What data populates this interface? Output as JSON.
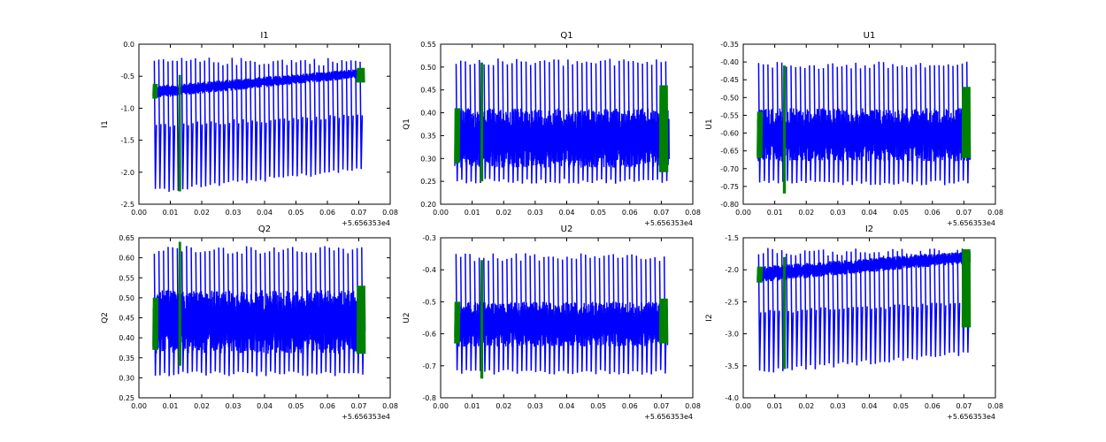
{
  "offset_label": "+5.656353e4",
  "colors": {
    "primary": "#0000ff",
    "secondary": "#008000"
  },
  "chart_data": [
    {
      "type": "line",
      "title": "I1",
      "xlabel": "",
      "ylabel": "I1",
      "xlim": [
        0.0,
        0.08
      ],
      "ylim": [
        -2.5,
        0.0
      ],
      "xticks": [
        "0.00",
        "0.01",
        "0.02",
        "0.03",
        "0.04",
        "0.05",
        "0.06",
        "0.07",
        "0.08"
      ],
      "yticks": [
        "0.0",
        "-0.5",
        "-1.0",
        "-1.5",
        "-2.0",
        "-2.5"
      ],
      "yticks_values": [
        0.0,
        -0.5,
        -1.0,
        -1.5,
        -2.0,
        -2.5
      ],
      "x_offset": "+5.656353e4",
      "series": [
        {
          "color": "#0000ff",
          "x_range": [
            0.0045,
            0.0715
          ],
          "band_start": [
            -0.85,
            -0.65
          ],
          "band_end": [
            -0.52,
            -0.38
          ],
          "spike_low_start": -2.3,
          "spike_low_end": -1.95,
          "spike_high": -0.27,
          "spike_count": 46
        },
        {
          "color": "#008000",
          "segments": [
            {
              "x": [
                0.0045,
                0.0058
              ],
              "band": [
                -0.85,
                -0.62
              ]
            },
            {
              "x": [
                0.0128,
                0.0132
              ],
              "band": [
                -2.3,
                -0.48
              ]
            },
            {
              "x": [
                0.0695,
                0.0718
              ],
              "band": [
                -0.6,
                -0.37
              ]
            }
          ]
        }
      ]
    },
    {
      "type": "line",
      "title": "Q1",
      "xlabel": "",
      "ylabel": "Q1",
      "xlim": [
        0.0,
        0.08
      ],
      "ylim": [
        0.2,
        0.55
      ],
      "xticks": [
        "0.00",
        "0.01",
        "0.02",
        "0.03",
        "0.04",
        "0.05",
        "0.06",
        "0.07",
        "0.08"
      ],
      "yticks": [
        "0.55",
        "0.50",
        "0.45",
        "0.40",
        "0.35",
        "0.30",
        "0.25",
        "0.20"
      ],
      "yticks_values": [
        0.55,
        0.5,
        0.45,
        0.4,
        0.35,
        0.3,
        0.25,
        0.2
      ],
      "x_offset": "+5.656353e4",
      "series": [
        {
          "color": "#0000ff",
          "x_range": [
            0.0045,
            0.0725
          ],
          "band_start": [
            0.28,
            0.41
          ],
          "band_end": [
            0.28,
            0.41
          ],
          "spike_low_start": 0.25,
          "spike_low_end": 0.25,
          "spike_high": 0.51,
          "spike_count": 46
        },
        {
          "color": "#008000",
          "segments": [
            {
              "x": [
                0.0045,
                0.006
              ],
              "band": [
                0.29,
                0.41
              ]
            },
            {
              "x": [
                0.0128,
                0.0133
              ],
              "band": [
                0.25,
                0.51
              ]
            },
            {
              "x": [
                0.0695,
                0.072
              ],
              "band": [
                0.27,
                0.46
              ]
            }
          ]
        }
      ]
    },
    {
      "type": "line",
      "title": "U1",
      "xlabel": "",
      "ylabel": "U1",
      "xlim": [
        0.0,
        0.08
      ],
      "ylim": [
        -0.8,
        -0.35
      ],
      "xticks": [
        "0.00",
        "0.01",
        "0.02",
        "0.03",
        "0.04",
        "0.05",
        "0.06",
        "0.07",
        "0.08"
      ],
      "yticks": [
        "-0.35",
        "-0.40",
        "-0.45",
        "-0.50",
        "-0.55",
        "-0.60",
        "-0.65",
        "-0.70",
        "-0.75",
        "-0.80"
      ],
      "yticks_values": [
        -0.35,
        -0.4,
        -0.45,
        -0.5,
        -0.55,
        -0.6,
        -0.65,
        -0.7,
        -0.75,
        -0.8
      ],
      "x_offset": "+5.656353e4",
      "series": [
        {
          "color": "#0000ff",
          "x_range": [
            0.0045,
            0.072
          ],
          "band_start": [
            -0.68,
            -0.53
          ],
          "band_end": [
            -0.68,
            -0.53
          ],
          "spike_low_start": -0.74,
          "spike_low_end": -0.74,
          "spike_high": -0.41,
          "spike_count": 46
        },
        {
          "color": "#008000",
          "segments": [
            {
              "x": [
                0.0045,
                0.006
              ],
              "band": [
                -0.67,
                -0.54
              ]
            },
            {
              "x": [
                0.0128,
                0.0133
              ],
              "band": [
                -0.77,
                -0.41
              ]
            },
            {
              "x": [
                0.0695,
                0.072
              ],
              "band": [
                -0.67,
                -0.47
              ]
            }
          ]
        }
      ]
    },
    {
      "type": "line",
      "title": "Q2",
      "xlabel": "",
      "ylabel": "Q2",
      "xlim": [
        0.0,
        0.08
      ],
      "ylim": [
        0.25,
        0.65
      ],
      "xticks": [
        "0.00",
        "0.01",
        "0.02",
        "0.03",
        "0.04",
        "0.05",
        "0.06",
        "0.07",
        "0.08"
      ],
      "yticks": [
        "0.65",
        "0.60",
        "0.55",
        "0.50",
        "0.45",
        "0.40",
        "0.35",
        "0.30",
        "0.25"
      ],
      "yticks_values": [
        0.65,
        0.6,
        0.55,
        0.5,
        0.45,
        0.4,
        0.35,
        0.3,
        0.25
      ],
      "x_offset": "+5.656353e4",
      "series": [
        {
          "color": "#0000ff",
          "x_range": [
            0.0045,
            0.072
          ],
          "band_start": [
            0.36,
            0.52
          ],
          "band_end": [
            0.36,
            0.52
          ],
          "spike_low_start": 0.31,
          "spike_low_end": 0.31,
          "spike_high": 0.62,
          "spike_count": 46
        },
        {
          "color": "#008000",
          "segments": [
            {
              "x": [
                0.0045,
                0.006
              ],
              "band": [
                0.37,
                0.5
              ]
            },
            {
              "x": [
                0.0128,
                0.0133
              ],
              "band": [
                0.33,
                0.64
              ]
            },
            {
              "x": [
                0.0695,
                0.072
              ],
              "band": [
                0.36,
                0.53
              ]
            }
          ]
        }
      ]
    },
    {
      "type": "line",
      "title": "U2",
      "xlabel": "",
      "ylabel": "U2",
      "xlim": [
        0.0,
        0.08
      ],
      "ylim": [
        -0.8,
        -0.3
      ],
      "xticks": [
        "0.00",
        "0.01",
        "0.02",
        "0.03",
        "0.04",
        "0.05",
        "0.06",
        "0.07",
        "0.08"
      ],
      "yticks": [
        "-0.3",
        "-0.4",
        "-0.5",
        "-0.6",
        "-0.7",
        "-0.8"
      ],
      "yticks_values": [
        -0.3,
        -0.4,
        -0.5,
        -0.6,
        -0.7,
        -0.8
      ],
      "x_offset": "+5.656353e4",
      "series": [
        {
          "color": "#0000ff",
          "x_range": [
            0.0045,
            0.072
          ],
          "band_start": [
            -0.64,
            -0.5
          ],
          "band_end": [
            -0.64,
            -0.5
          ],
          "spike_low_start": -0.72,
          "spike_low_end": -0.72,
          "spike_high": -0.36,
          "spike_count": 46
        },
        {
          "color": "#008000",
          "segments": [
            {
              "x": [
                0.0045,
                0.006
              ],
              "band": [
                -0.63,
                -0.5
              ]
            },
            {
              "x": [
                0.0128,
                0.0133
              ],
              "band": [
                -0.74,
                -0.37
              ]
            },
            {
              "x": [
                0.0695,
                0.072
              ],
              "band": [
                -0.63,
                -0.49
              ]
            }
          ]
        }
      ]
    },
    {
      "type": "line",
      "title": "I2",
      "xlabel": "",
      "ylabel": "I2",
      "xlim": [
        0.0,
        0.08
      ],
      "ylim": [
        -4.0,
        -1.5
      ],
      "xticks": [
        "0.00",
        "0.01",
        "0.02",
        "0.03",
        "0.04",
        "0.05",
        "0.06",
        "0.07",
        "0.08"
      ],
      "yticks": [
        "-1.5",
        "-2.0",
        "-2.5",
        "-3.0",
        "-3.5",
        "-4.0"
      ],
      "yticks_values": [
        -1.5,
        -2.0,
        -2.5,
        -3.0,
        -3.5,
        -4.0
      ],
      "x_offset": "+5.656353e4",
      "series": [
        {
          "color": "#0000ff",
          "x_range": [
            0.0045,
            0.072
          ],
          "band_start": [
            -2.2,
            -1.95
          ],
          "band_end": [
            -1.9,
            -1.7
          ],
          "spike_low_start": -3.6,
          "spike_low_end": -3.3,
          "spike_high": -1.72,
          "spike_count": 46
        },
        {
          "color": "#008000",
          "segments": [
            {
              "x": [
                0.0045,
                0.006
              ],
              "band": [
                -2.2,
                -1.95
              ]
            },
            {
              "x": [
                0.0128,
                0.0133
              ],
              "band": [
                -3.55,
                -1.8
              ]
            },
            {
              "x": [
                0.0695,
                0.072
              ],
              "band": [
                -2.9,
                -1.68
              ]
            }
          ]
        }
      ]
    }
  ]
}
